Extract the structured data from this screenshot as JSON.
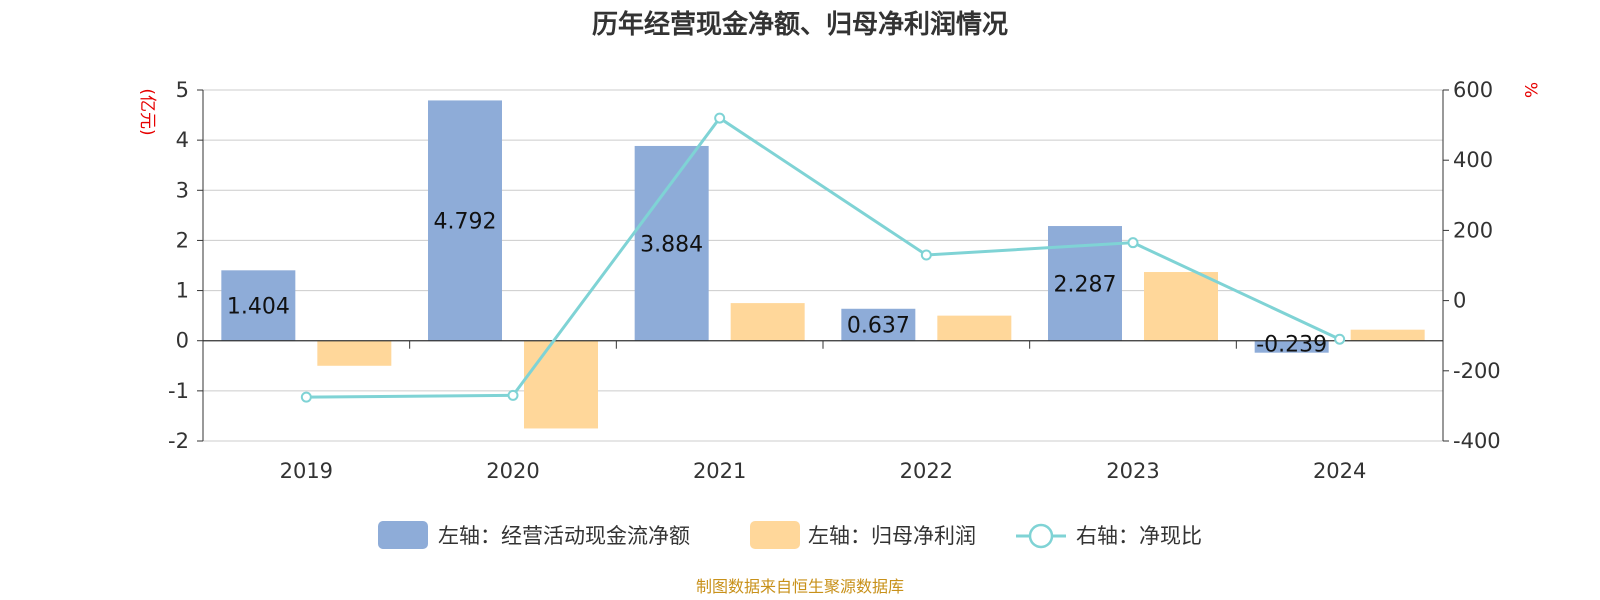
{
  "source_note": "制图数据来自恒生聚源数据库",
  "colors": {
    "cash_flow": "#8eacd8",
    "net_profit": "#ffd79a",
    "ratio_line": "#7fd3d5",
    "unit_red": "#e60000",
    "source_gold": "#c8911a",
    "grid": "#cccccc",
    "axis": "#333333"
  },
  "chart_data": {
    "type": "bar",
    "title": "历年经营现金净额、归母净利润情况",
    "categories": [
      "2019",
      "2020",
      "2021",
      "2022",
      "2023",
      "2024"
    ],
    "left_axis": {
      "unit": "(亿元)",
      "ylim": [
        -2,
        5
      ],
      "ticks": [
        -2,
        -1,
        0,
        1,
        2,
        3,
        4,
        5
      ]
    },
    "right_axis": {
      "unit": "%",
      "ylim": [
        -400,
        600
      ],
      "ticks": [
        -400,
        -200,
        0,
        200,
        400,
        600
      ]
    },
    "series": [
      {
        "name": "左轴：经营活动现金流净额",
        "kind": "bar",
        "axis": "left",
        "values": [
          1.404,
          4.792,
          3.884,
          0.637,
          2.287,
          -0.239
        ],
        "labels": [
          "1.404",
          "4.792",
          "3.884",
          "0.637",
          "2.287",
          "-0.239"
        ]
      },
      {
        "name": "左轴：归母净利润",
        "kind": "bar",
        "axis": "left",
        "values": [
          -0.5,
          -1.75,
          0.75,
          0.5,
          1.37,
          0.22
        ]
      },
      {
        "name": "右轴：净现比",
        "kind": "line",
        "axis": "right",
        "values": [
          -275,
          -270,
          520,
          130,
          165,
          -110
        ]
      }
    ],
    "grid": true,
    "legend_position": "bottom"
  }
}
